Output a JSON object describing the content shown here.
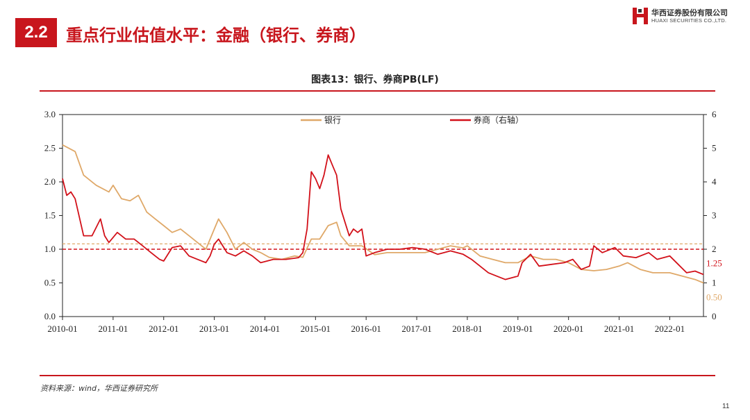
{
  "header": {
    "section_number": "2.2",
    "title": "重点行业估值水平：金融（银行、券商）",
    "logo_cn": "华西证券股份有限公司",
    "logo_en": "HUAXI SECURITIES CO.,LTD."
  },
  "footer": {
    "source": "资料来源：wind，华西证券研究所",
    "page_number": "11"
  },
  "colors": {
    "brand_red": "#c8161d",
    "bank": "#dfa868",
    "broker": "#d21019"
  },
  "chart_data": {
    "type": "line",
    "title": "图表13：银行、券商PB(LF)",
    "x_ticks": [
      "2010-01",
      "2011-01",
      "2012-01",
      "2013-01",
      "2014-01",
      "2015-01",
      "2016-01",
      "2017-01",
      "2018-01",
      "2019-01",
      "2020-01",
      "2021-01",
      "2022-01"
    ],
    "xlim": [
      "2010-01",
      "2022-09"
    ],
    "y_left": {
      "ylim": [
        0,
        3
      ],
      "ticks": [
        "0.0",
        "0.5",
        "1.0",
        "1.5",
        "2.0",
        "2.5",
        "3.0"
      ]
    },
    "y_right": {
      "ylim": [
        0,
        6
      ],
      "ticks": [
        "0",
        "1",
        "2",
        "3",
        "4",
        "5",
        "6"
      ]
    },
    "legend_position": "top",
    "series": [
      {
        "name": "银行",
        "axis": "left",
        "color": "#dfa868",
        "end_label": "0.50",
        "reference_line": 1.08,
        "points": [
          [
            "2010-01",
            2.55
          ],
          [
            "2010-04",
            2.45
          ],
          [
            "2010-06",
            2.1
          ],
          [
            "2010-09",
            1.95
          ],
          [
            "2010-12",
            1.85
          ],
          [
            "2011-01",
            1.95
          ],
          [
            "2011-03",
            1.75
          ],
          [
            "2011-05",
            1.72
          ],
          [
            "2011-07",
            1.8
          ],
          [
            "2011-09",
            1.55
          ],
          [
            "2011-11",
            1.45
          ],
          [
            "2012-01",
            1.35
          ],
          [
            "2012-03",
            1.25
          ],
          [
            "2012-05",
            1.3
          ],
          [
            "2012-07",
            1.2
          ],
          [
            "2012-09",
            1.1
          ],
          [
            "2012-11",
            1.0
          ],
          [
            "2013-01",
            1.3
          ],
          [
            "2013-02",
            1.45
          ],
          [
            "2013-04",
            1.25
          ],
          [
            "2013-06",
            1.0
          ],
          [
            "2013-08",
            1.1
          ],
          [
            "2013-10",
            1.0
          ],
          [
            "2013-12",
            0.95
          ],
          [
            "2014-02",
            0.88
          ],
          [
            "2014-05",
            0.85
          ],
          [
            "2014-08",
            0.9
          ],
          [
            "2014-10",
            0.88
          ],
          [
            "2014-12",
            1.15
          ],
          [
            "2015-02",
            1.15
          ],
          [
            "2015-04",
            1.35
          ],
          [
            "2015-06",
            1.4
          ],
          [
            "2015-07",
            1.2
          ],
          [
            "2015-09",
            1.05
          ],
          [
            "2015-12",
            1.05
          ],
          [
            "2016-03",
            0.92
          ],
          [
            "2016-06",
            0.95
          ],
          [
            "2016-09",
            0.95
          ],
          [
            "2016-12",
            0.95
          ],
          [
            "2017-03",
            0.95
          ],
          [
            "2017-06",
            1.0
          ],
          [
            "2017-09",
            1.05
          ],
          [
            "2017-12",
            1.02
          ],
          [
            "2018-01",
            1.05
          ],
          [
            "2018-04",
            0.9
          ],
          [
            "2018-07",
            0.85
          ],
          [
            "2018-10",
            0.8
          ],
          [
            "2019-01",
            0.8
          ],
          [
            "2019-04",
            0.9
          ],
          [
            "2019-07",
            0.85
          ],
          [
            "2019-10",
            0.85
          ],
          [
            "2020-01",
            0.8
          ],
          [
            "2020-04",
            0.7
          ],
          [
            "2020-07",
            0.68
          ],
          [
            "2020-10",
            0.7
          ],
          [
            "2021-01",
            0.75
          ],
          [
            "2021-03",
            0.8
          ],
          [
            "2021-06",
            0.7
          ],
          [
            "2021-09",
            0.65
          ],
          [
            "2022-01",
            0.65
          ],
          [
            "2022-04",
            0.6
          ],
          [
            "2022-07",
            0.55
          ],
          [
            "2022-09",
            0.5
          ]
        ]
      },
      {
        "name": "券商（右轴）",
        "axis": "right",
        "color": "#d21019",
        "end_label": "1.25",
        "reference_line": 2.0,
        "points": [
          [
            "2010-01",
            4.1
          ],
          [
            "2010-02",
            3.6
          ],
          [
            "2010-03",
            3.7
          ],
          [
            "2010-04",
            3.5
          ],
          [
            "2010-06",
            2.4
          ],
          [
            "2010-08",
            2.4
          ],
          [
            "2010-10",
            2.9
          ],
          [
            "2010-11",
            2.4
          ],
          [
            "2010-12",
            2.2
          ],
          [
            "2011-02",
            2.5
          ],
          [
            "2011-04",
            2.3
          ],
          [
            "2011-06",
            2.3
          ],
          [
            "2011-08",
            2.1
          ],
          [
            "2011-10",
            1.9
          ],
          [
            "2011-12",
            1.7
          ],
          [
            "2012-01",
            1.65
          ],
          [
            "2012-03",
            2.05
          ],
          [
            "2012-05",
            2.1
          ],
          [
            "2012-07",
            1.8
          ],
          [
            "2012-09",
            1.7
          ],
          [
            "2012-11",
            1.6
          ],
          [
            "2012-12",
            1.8
          ],
          [
            "2013-01",
            2.15
          ],
          [
            "2013-02",
            2.3
          ],
          [
            "2013-04",
            1.9
          ],
          [
            "2013-06",
            1.8
          ],
          [
            "2013-08",
            1.95
          ],
          [
            "2013-10",
            1.8
          ],
          [
            "2013-12",
            1.6
          ],
          [
            "2014-03",
            1.7
          ],
          [
            "2014-06",
            1.7
          ],
          [
            "2014-09",
            1.75
          ],
          [
            "2014-10",
            1.9
          ],
          [
            "2014-11",
            2.6
          ],
          [
            "2014-12",
            4.3
          ],
          [
            "2015-01",
            4.1
          ],
          [
            "2015-02",
            3.8
          ],
          [
            "2015-03",
            4.2
          ],
          [
            "2015-04",
            4.8
          ],
          [
            "2015-05",
            4.5
          ],
          [
            "2015-06",
            4.2
          ],
          [
            "2015-07",
            3.2
          ],
          [
            "2015-08",
            2.8
          ],
          [
            "2015-09",
            2.4
          ],
          [
            "2015-10",
            2.6
          ],
          [
            "2015-11",
            2.5
          ],
          [
            "2015-12",
            2.6
          ],
          [
            "2016-01",
            1.8
          ],
          [
            "2016-03",
            1.9
          ],
          [
            "2016-06",
            2.0
          ],
          [
            "2016-09",
            2.0
          ],
          [
            "2016-12",
            2.05
          ],
          [
            "2017-03",
            2.0
          ],
          [
            "2017-06",
            1.85
          ],
          [
            "2017-09",
            1.95
          ],
          [
            "2017-12",
            1.85
          ],
          [
            "2018-02",
            1.7
          ],
          [
            "2018-04",
            1.5
          ],
          [
            "2018-06",
            1.3
          ],
          [
            "2018-08",
            1.2
          ],
          [
            "2018-10",
            1.1
          ],
          [
            "2019-01",
            1.2
          ],
          [
            "2019-02",
            1.6
          ],
          [
            "2019-04",
            1.85
          ],
          [
            "2019-06",
            1.5
          ],
          [
            "2019-09",
            1.55
          ],
          [
            "2019-12",
            1.6
          ],
          [
            "2020-02",
            1.7
          ],
          [
            "2020-04",
            1.4
          ],
          [
            "2020-06",
            1.5
          ],
          [
            "2020-07",
            2.1
          ],
          [
            "2020-09",
            1.9
          ],
          [
            "2020-12",
            2.05
          ],
          [
            "2021-02",
            1.8
          ],
          [
            "2021-05",
            1.75
          ],
          [
            "2021-08",
            1.9
          ],
          [
            "2021-10",
            1.7
          ],
          [
            "2022-01",
            1.8
          ],
          [
            "2022-03",
            1.55
          ],
          [
            "2022-05",
            1.3
          ],
          [
            "2022-07",
            1.35
          ],
          [
            "2022-09",
            1.25
          ]
        ]
      }
    ]
  }
}
